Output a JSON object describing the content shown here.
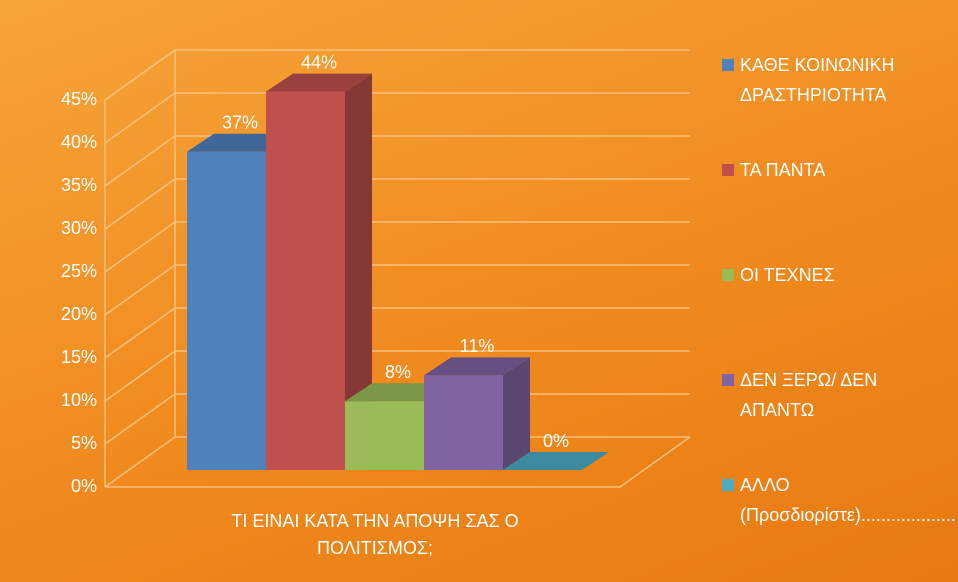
{
  "chart_data": {
    "type": "bar3d",
    "categories": [
      "ΤΙ ΕΙΝΑΙ ΚΑΤΑ ΤΗΝ ΑΠΟΨΗ ΣΑΣ Ο ΠΟΛΙΤΙΣΜΟΣ;"
    ],
    "series": [
      {
        "name": "ΚΑΘΕ ΚΟΙΝΩΝΙΚΗ ΔΡΑΣΤΗΡΙΟΤΗΤΑ",
        "color": "#4f81bd",
        "values": [
          37
        ],
        "value_labels": [
          "37%"
        ]
      },
      {
        "name": "ΤΑ ΠΑΝΤΑ",
        "color": "#c0504d",
        "values": [
          44
        ],
        "value_labels": [
          "44%"
        ]
      },
      {
        "name": "ΟΙ ΤΕΧΝΕΣ",
        "color": "#9bbb59",
        "values": [
          8
        ],
        "value_labels": [
          "8%"
        ]
      },
      {
        "name": " ΔΕΝ ΞΕΡΩ/ ΔΕΝ ΑΠΑΝΤΩ",
        "color": "#8064a2",
        "values": [
          11
        ],
        "value_labels": [
          "11%"
        ]
      },
      {
        "name": "ΑΛΛΟ (Προσδιορίστε)...................",
        "color": "#4bacc6",
        "values": [
          0
        ],
        "value_labels": [
          "0%"
        ]
      }
    ],
    "ylim": [
      0,
      45
    ],
    "yticks": [
      {
        "value": 0,
        "label": "0%"
      },
      {
        "value": 5,
        "label": "5%"
      },
      {
        "value": 10,
        "label": "10%"
      },
      {
        "value": 15,
        "label": "15%"
      },
      {
        "value": 20,
        "label": "20%"
      },
      {
        "value": 25,
        "label": "25%"
      },
      {
        "value": 30,
        "label": "30%"
      },
      {
        "value": 35,
        "label": "35%"
      },
      {
        "value": 40,
        "label": "40%"
      },
      {
        "value": 45,
        "label": "45%"
      }
    ],
    "grid": true,
    "legend": "right"
  }
}
